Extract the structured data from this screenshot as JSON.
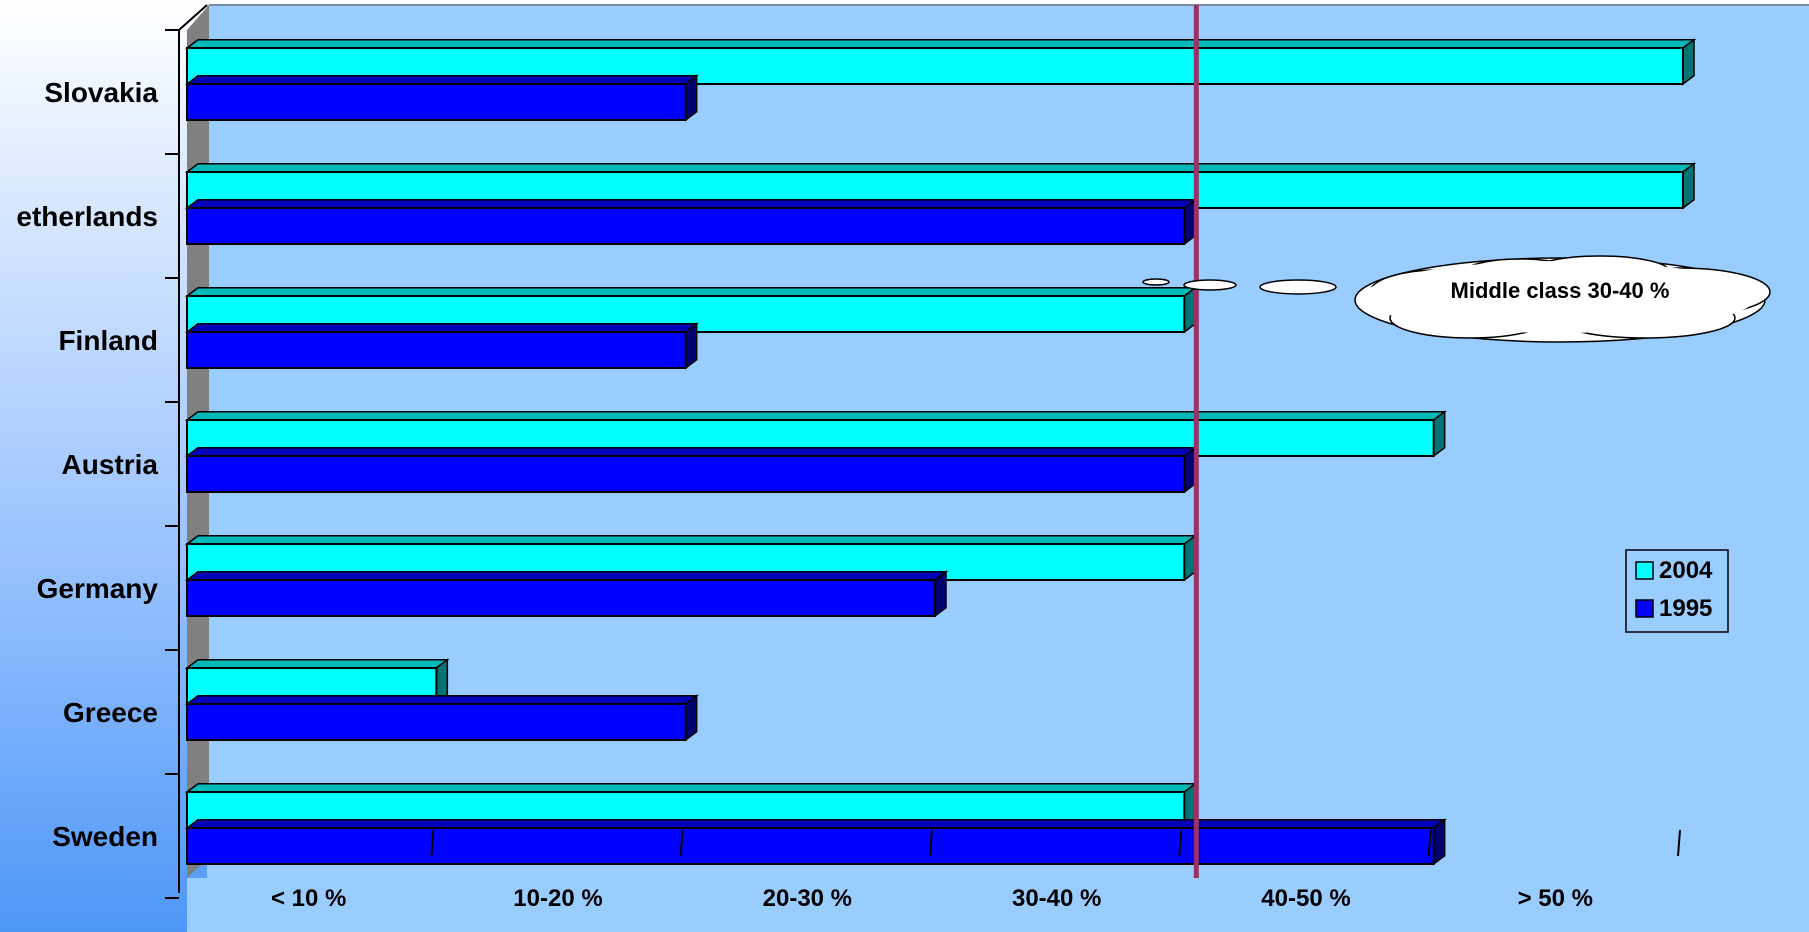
{
  "chart_data": {
    "type": "bar",
    "orientation": "horizontal",
    "categories": [
      "Slovakia",
      "Netherlands",
      "Finland",
      "Austria",
      "Germany",
      "Greece",
      "Sweden"
    ],
    "category_labels": [
      "Slovakia",
      "etherlands",
      "Finland",
      "Austria",
      "Germany",
      "Greece",
      "Sweden"
    ],
    "x_tick_labels": [
      "< 10 %",
      "10-20 %",
      "20-30 %",
      "30-40 %",
      "40-50 %",
      "> 50 %"
    ],
    "xlim": [
      0,
      6
    ],
    "series": [
      {
        "name": "2004",
        "color": "#00ffff",
        "values": [
          6,
          6,
          4,
          5,
          4,
          1,
          4
        ]
      },
      {
        "name": "1995",
        "color": "#0000ff",
        "values": [
          2,
          4,
          2,
          4,
          3,
          2,
          5
        ]
      }
    ],
    "reference_line": {
      "value": 4,
      "color": "#993366"
    },
    "annotation": "Middle class 30-40 %",
    "legend_position": "right",
    "grid": false,
    "colors": {
      "plot_area": "#99ccff",
      "side_wall": "#808080",
      "bar_outline": "#000000"
    }
  }
}
